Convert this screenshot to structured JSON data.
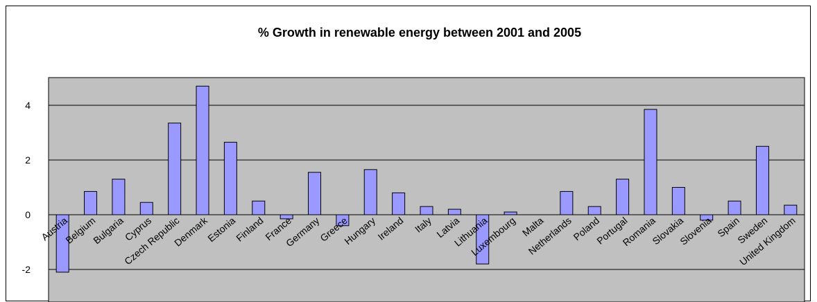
{
  "chart_data": {
    "type": "bar",
    "title": "% Growth in renewable energy between 2001 and 2005",
    "xlabel": "",
    "ylabel": "",
    "ylim": [
      -2,
      5
    ],
    "yticks": [
      -2,
      0,
      2,
      4
    ],
    "grid": true,
    "legend": "none",
    "colors": {
      "bar": "#9999ff",
      "plot_background": "#c0c0c0",
      "frame": "#000000"
    },
    "categories": [
      "Austria",
      "Belgium",
      "Bulgaria",
      "Cyprus",
      "Czech Republic",
      "Denmark",
      "Estonia",
      "Finland",
      "France",
      "Germany",
      "Greece",
      "Hungary",
      "Ireland",
      "Italy",
      "Latvia",
      "Lithuania",
      "Luxembourg",
      "Malta",
      "Netherlands",
      "Poland",
      "Portugal",
      "Romania",
      "Slovakia",
      "Slovenia",
      "Spain",
      "Sweden",
      "United Kingdom"
    ],
    "values": [
      -2.1,
      0.85,
      1.3,
      0.45,
      3.35,
      4.7,
      2.65,
      0.5,
      -0.15,
      1.55,
      -0.4,
      1.65,
      0.8,
      0.3,
      0.2,
      -1.8,
      0.1,
      0,
      0.85,
      0.3,
      1.3,
      3.85,
      1.0,
      -0.2,
      0.5,
      2.5,
      0.35
    ]
  }
}
